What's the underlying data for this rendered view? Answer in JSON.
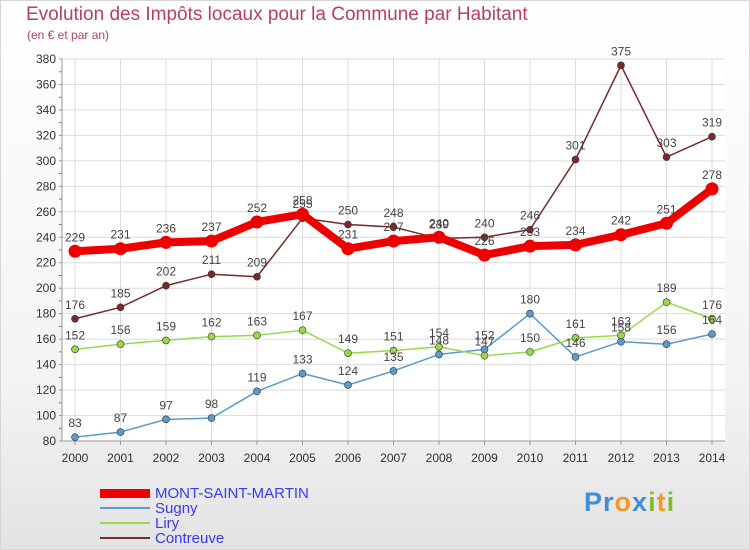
{
  "title": "Evolution des Impôts locaux pour la Commune par Habitant",
  "subtitle": "(en € et par an)",
  "colors": {
    "title": "#b8405e",
    "legend_text": "#3a3af0"
  },
  "logo": {
    "text": "Proxiti"
  },
  "chart_data": {
    "type": "line",
    "title": "Evolution des Impôts locaux pour la Commune par Habitant",
    "subtitle": "(en € et par an)",
    "x": [
      "2000",
      "2001",
      "2002",
      "2003",
      "2004",
      "2005",
      "2006",
      "2007",
      "2008",
      "2009",
      "2010",
      "2011",
      "2012",
      "2013",
      "2014"
    ],
    "yticks": [
      "80",
      "100",
      "120",
      "140",
      "160",
      "180",
      "200",
      "220",
      "240",
      "260",
      "280",
      "300",
      "320",
      "340",
      "360",
      "380"
    ],
    "ylim": [
      80,
      380
    ],
    "grid": true,
    "legend_position": "bottom-left",
    "series": [
      {
        "name": "MONT-SAINT-MARTIN",
        "color": "#ee0000",
        "values": [
          229,
          231,
          236,
          237,
          252,
          258,
          231,
          237,
          240,
          226,
          233,
          234,
          242,
          251,
          278
        ],
        "labels": [
          "229",
          "231",
          "236",
          "237",
          "252",
          "258",
          "231",
          "237",
          "240",
          "226",
          "233",
          "234",
          "242",
          "251",
          "278"
        ]
      },
      {
        "name": "Sugny",
        "color": "#5a9ad0",
        "values": [
          83,
          87,
          97,
          98,
          119,
          133,
          124,
          135,
          148,
          152,
          180,
          146,
          158,
          156,
          164
        ],
        "labels": [
          "83",
          "87",
          "97",
          "98",
          "119",
          "133",
          "124",
          "135",
          "148",
          "152",
          "180",
          "146",
          "158",
          "156",
          "164"
        ]
      },
      {
        "name": "Liry",
        "color": "#9ad84a",
        "values": [
          152,
          156,
          159,
          162,
          163,
          167,
          149,
          151,
          154,
          147,
          150,
          161,
          163,
          189,
          176
        ],
        "labels": [
          "152",
          "156",
          "159",
          "162",
          "163",
          "167",
          "149",
          "151",
          "154",
          "147",
          "150",
          "161",
          "163",
          "189",
          "176"
        ]
      },
      {
        "name": "Contreuve",
        "color": "#7a2a2a",
        "values": [
          176,
          185,
          202,
          211,
          209,
          255,
          250,
          248,
          239,
          240,
          246,
          301,
          375,
          303,
          319
        ],
        "labels": [
          "176",
          "185",
          "202",
          "211",
          "209",
          "255",
          "250",
          "248",
          "239",
          "240",
          "246",
          "301",
          "375",
          "303",
          "319"
        ]
      }
    ]
  }
}
